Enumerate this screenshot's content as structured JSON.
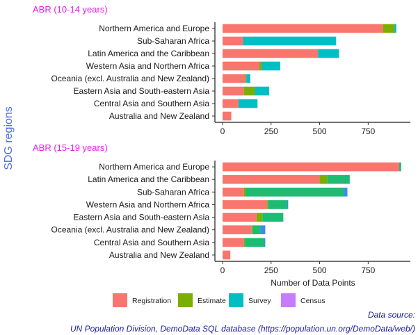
{
  "colors": {
    "Registration": "#F8766D",
    "Estimate": "#7CAE00",
    "Survey": "#00BFC4",
    "Census": "#C77CFF",
    "panel2": {
      "Registration": "#F8766D",
      "Estimate": "#7CAE00",
      "Survey": "#1EBB72",
      "Census": "#3C8DEB"
    }
  },
  "y_title": "SDG regions",
  "x_title": "Number of Data Points",
  "legend": [
    "Registration",
    "Estimate",
    "Survey",
    "Census"
  ],
  "source_line1": "Data source:",
  "source_line2": "UN Population Division, DemoData SQL database (https://population.un.org/DemoData/web/)",
  "chart_data": [
    {
      "type": "bar",
      "orientation": "horizontal",
      "stacked": true,
      "title": "ABR (10-14 years)",
      "categories": [
        "Northern America and Europe",
        "Sub-Saharan Africa",
        "Latin America and the Caribbean",
        "Western Asia and Northern Africa",
        "Oceania (excl. Australia and New Zealand)",
        "Eastern Asia and South-eastern Asia",
        "Central Asia and Southern Asia",
        "Australia and New Zealand"
      ],
      "series": [
        {
          "name": "Registration",
          "values": [
            825,
            105,
            492,
            190,
            118,
            110,
            82,
            45
          ]
        },
        {
          "name": "Estimate",
          "values": [
            60,
            0,
            0,
            12,
            5,
            55,
            0,
            0
          ]
        },
        {
          "name": "Survey",
          "values": [
            10,
            480,
            108,
            95,
            20,
            75,
            98,
            0
          ]
        },
        {
          "name": "Census",
          "values": [
            0,
            0,
            0,
            0,
            0,
            0,
            0,
            0
          ]
        }
      ],
      "xlim": [
        0,
        935
      ],
      "xticks": [
        0,
        250,
        500,
        750
      ]
    },
    {
      "type": "bar",
      "orientation": "horizontal",
      "stacked": true,
      "title": "ABR (15-19 years)",
      "categories": [
        "Northern America and Europe",
        "Latin America and the Caribbean",
        "Sub-Saharan Africa",
        "Western Asia and Northern Africa",
        "Eastern Asia and South-eastern Asia",
        "Oceania (excl. Australia and New Zealand)",
        "Central Asia and Southern Asia",
        "Australia and New Zealand"
      ],
      "series": [
        {
          "name": "Registration",
          "values": [
            910,
            500,
            110,
            230,
            175,
            150,
            110,
            40
          ]
        },
        {
          "name": "Estimate",
          "values": [
            0,
            40,
            10,
            5,
            30,
            5,
            5,
            0
          ]
        },
        {
          "name": "Survey",
          "values": [
            10,
            115,
            505,
            98,
            108,
            40,
            100,
            0
          ]
        },
        {
          "name": "Census",
          "values": [
            0,
            0,
            18,
            5,
            0,
            25,
            5,
            0
          ]
        }
      ],
      "xlim": [
        0,
        935
      ],
      "xticks": [
        0,
        250,
        500,
        750
      ]
    }
  ]
}
